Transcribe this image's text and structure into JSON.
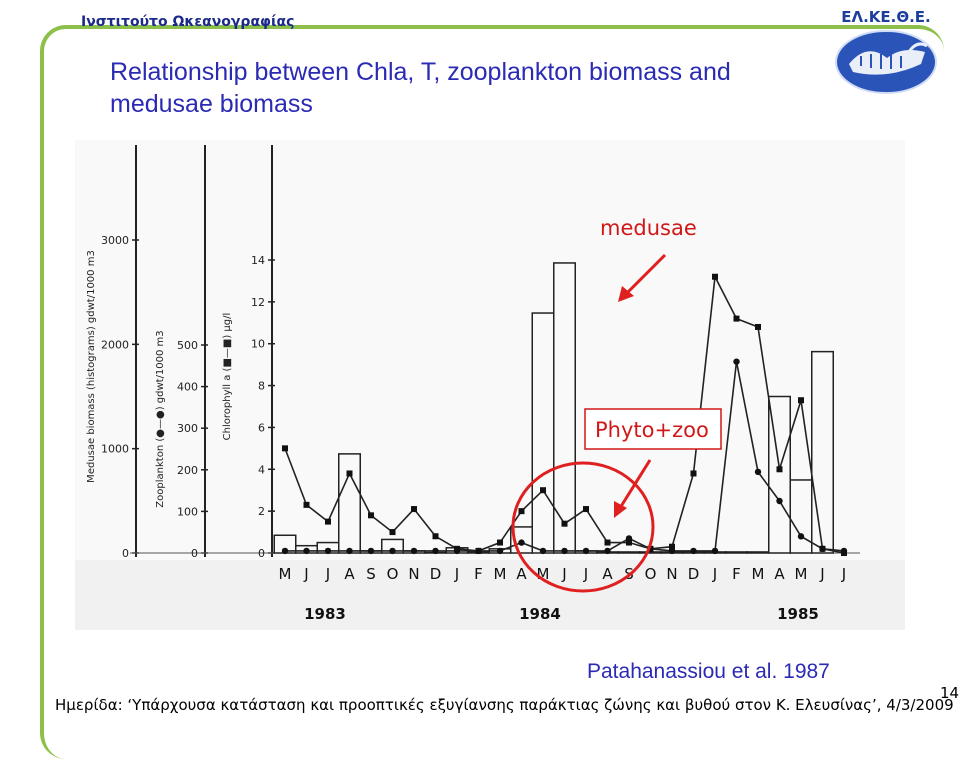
{
  "header": {
    "institute": "Ινστιτούτο Ωκεανογραφίας",
    "logo_text": "ΕΛ.ΚΕ.Θ.Ε.",
    "title_line1": "Relationship between Chla, T, zooplankton biomass and",
    "title_line2": "medusae biomass"
  },
  "annotations": {
    "medusae": "medusae",
    "phyto_zoo": "Phyto+zoo",
    "arrow_color": "#e02020",
    "circle_color": "#e02020"
  },
  "credit": "Patahanassiou et al. 1987",
  "footer": "Ημερίδα: ‘Υπάρχουσα κατάσταση και προοπτικές εξυγίανσης παράκτιας ζώνης και βυθού στον Κ. Ελευσίνας’, 4/3/2009",
  "page_number": "14",
  "chart_data": {
    "type": "bar",
    "months": [
      "M",
      "J",
      "J",
      "A",
      "S",
      "O",
      "N",
      "D",
      "J",
      "F",
      "M",
      "A",
      "M",
      "J",
      "J",
      "A",
      "S",
      "O",
      "N",
      "D",
      "J",
      "F",
      "M",
      "A",
      "M",
      "J",
      "J"
    ],
    "years": [
      {
        "label": "1983",
        "start_index": 0
      },
      {
        "label": "1984",
        "start_index": 10
      },
      {
        "label": "1985",
        "start_index": 22
      }
    ],
    "axes": [
      {
        "label": "Medusae biomass (histograms) gdwt/1000 m3",
        "ticks": [
          0,
          1000,
          2000,
          3000
        ],
        "range": [
          0,
          3400
        ]
      },
      {
        "label": "Zooplankton (●—●) gdwt/1000 m3",
        "ticks": [
          0,
          100,
          200,
          300,
          400,
          500
        ],
        "range": [
          0,
          566
        ]
      },
      {
        "label": "Chlorophyll a (■—■) µg/l",
        "ticks": [
          0,
          2,
          4,
          6,
          8,
          10,
          12,
          14
        ],
        "range": [
          0,
          15.2
        ]
      }
    ],
    "series": [
      {
        "name": "Medusae biomass",
        "kind": "histogram",
        "axis": 0,
        "values": [
          170,
          70,
          100,
          950,
          20,
          130,
          20,
          5,
          50,
          10,
          40,
          250,
          2300,
          2780,
          20,
          10,
          10,
          10,
          10,
          10,
          10,
          10,
          10,
          1500,
          700,
          1930,
          0
        ]
      },
      {
        "name": "Zooplankton",
        "kind": "line-circle",
        "axis": 1,
        "values": [
          5,
          5,
          5,
          5,
          5,
          5,
          5,
          5,
          5,
          5,
          5,
          25,
          5,
          5,
          5,
          5,
          35,
          10,
          5,
          5,
          5,
          460,
          195,
          125,
          40,
          10,
          5
        ]
      },
      {
        "name": "Chlorophyll a",
        "kind": "line-square",
        "axis": 2,
        "values": [
          5.0,
          2.3,
          1.5,
          3.8,
          1.8,
          1.0,
          2.1,
          0.8,
          0.2,
          0.1,
          0.5,
          2.0,
          3.0,
          1.4,
          2.1,
          0.5,
          0.5,
          0.2,
          0.3,
          3.8,
          13.2,
          11.2,
          10.8,
          4.0,
          7.3,
          0.2,
          0.0
        ]
      }
    ]
  }
}
